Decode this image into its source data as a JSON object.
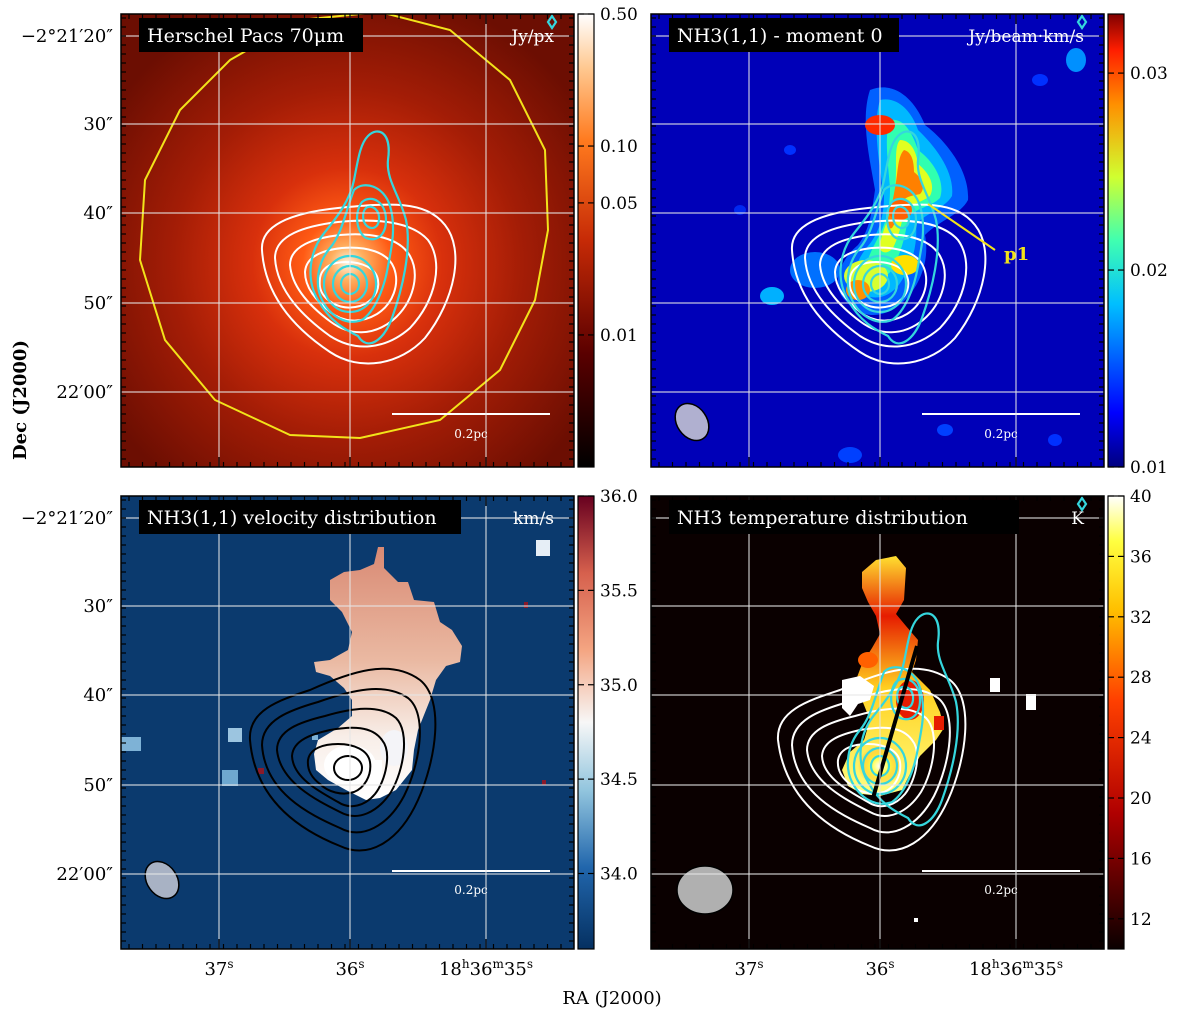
{
  "figure": {
    "xlabel": "RA (J2000)",
    "ylabel": "Dec (J2000)",
    "ra_ticks": [
      "37s",
      "36s",
      "18h36m35s"
    ],
    "dec_ticks": [
      "−2°21′20″",
      "30″",
      "40″",
      "50″",
      "22′00″"
    ]
  },
  "chart_data": [
    {
      "type": "heatmap",
      "title": "Herschel Pacs 70μm",
      "colorbar_unit": "Jy/px",
      "colorbar_scale": "log",
      "colormap": "red-hot",
      "colorbar_ticks": [
        "0.50",
        "0.10",
        "0.05",
        "0.01"
      ],
      "colorbar_tick_values": [
        0.5,
        0.1,
        0.05,
        0.01
      ],
      "colorbar_range": [
        0.002,
        0.5
      ],
      "scalebar_label": "0.2pc",
      "contours": [
        "white",
        "cyan",
        "yellow"
      ]
    },
    {
      "type": "heatmap",
      "title": "NH3(1,1) - moment 0",
      "colorbar_unit": "Jy/beam·km/s",
      "colorbar_scale": "linear",
      "colormap": "jet",
      "colorbar_ticks": [
        "0.03",
        "0.02",
        "0.01"
      ],
      "colorbar_tick_values": [
        0.03,
        0.02,
        0.01
      ],
      "colorbar_range": [
        0.01,
        0.033
      ],
      "scalebar_label": "0.2pc",
      "annotation": "p1",
      "contours": [
        "white",
        "cyan"
      ]
    },
    {
      "type": "heatmap",
      "title": "NH3(1,1) velocity distribution",
      "colorbar_unit": "km/s",
      "colorbar_scale": "linear",
      "colormap": "RdBu",
      "colorbar_ticks": [
        "36.0",
        "35.5",
        "35.0",
        "34.5",
        "34.0"
      ],
      "colorbar_tick_values": [
        36.0,
        35.5,
        35.0,
        34.5,
        34.0
      ],
      "colorbar_range": [
        33.6,
        36.0
      ],
      "scalebar_label": "0.2pc",
      "contours": [
        "black"
      ]
    },
    {
      "type": "heatmap",
      "title": "NH3 temperature distribution",
      "colorbar_unit": "K",
      "colorbar_scale": "linear",
      "colormap": "hot",
      "colorbar_ticks": [
        "40",
        "36",
        "32",
        "28",
        "24",
        "20",
        "16",
        "12"
      ],
      "colorbar_tick_values": [
        40,
        36,
        32,
        28,
        24,
        20,
        16,
        12
      ],
      "colorbar_range": [
        10,
        40
      ],
      "scalebar_label": "0.2pc",
      "contours": [
        "white",
        "cyan"
      ]
    }
  ],
  "colors": {
    "yellow_contour": "#f2e31a",
    "cyan_contour": "#35d6dd",
    "grid": "#e6e6e6",
    "label_box": "#000000"
  }
}
